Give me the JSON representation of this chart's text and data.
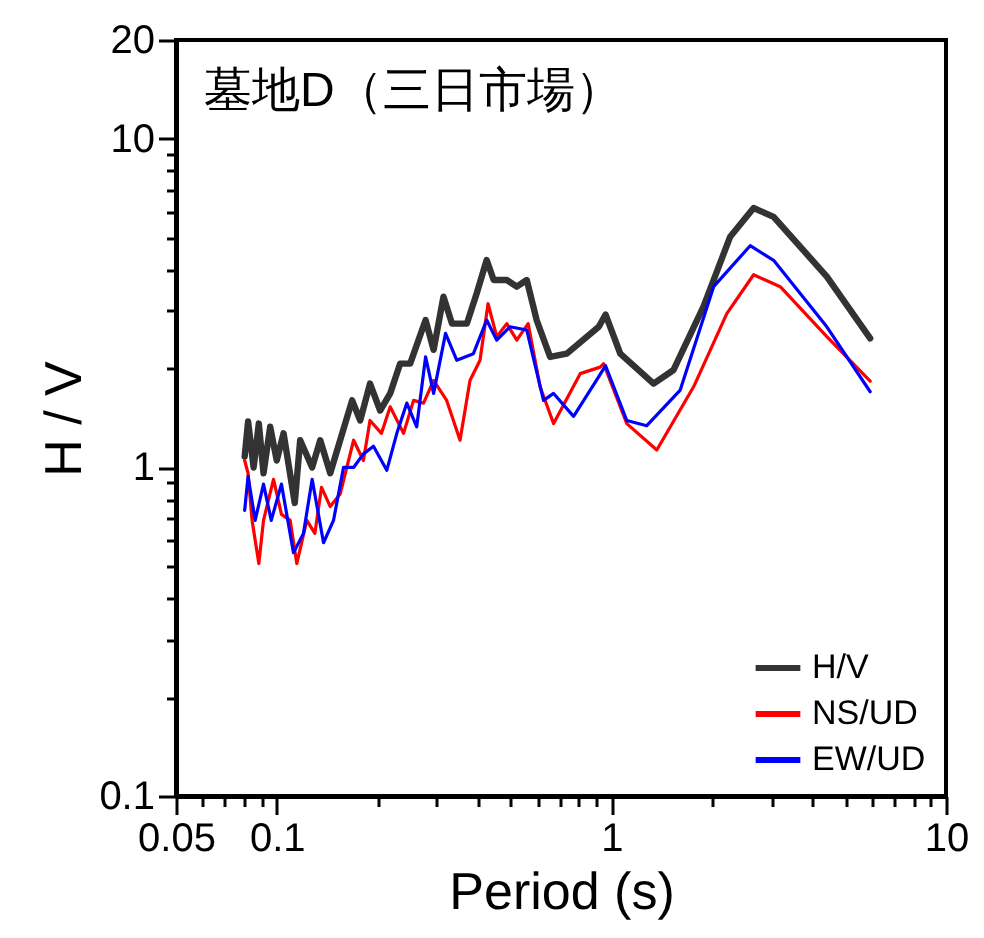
{
  "chart_data": {
    "type": "line",
    "title": "墓地D（三日市場）",
    "xlabel": "Period (s)",
    "ylabel": "H / V",
    "log": "xy",
    "grid": false,
    "legend": "bottom right",
    "line_style": "solid",
    "marker": "none",
    "xlim": [
      0.05,
      10
    ],
    "ylim": [
      0.1,
      20
    ],
    "xticks": [
      0.05,
      {
        "value": 0.06,
        "label": null
      },
      {
        "value": 0.07,
        "label": null
      },
      {
        "value": 0.08,
        "label": null
      },
      {
        "value": 0.09,
        "label": null
      },
      0.1,
      {
        "value": 0.2,
        "label": null
      },
      {
        "value": 0.3,
        "label": null
      },
      {
        "value": 0.4,
        "label": null
      },
      {
        "value": 0.5,
        "label": null
      },
      {
        "value": 0.6,
        "label": null
      },
      {
        "value": 0.7,
        "label": null
      },
      {
        "value": 0.8,
        "label": null
      },
      {
        "value": 0.9,
        "label": null
      },
      1,
      {
        "value": 2,
        "label": null
      },
      {
        "value": 3,
        "label": null
      },
      {
        "value": 4,
        "label": null
      },
      {
        "value": 5,
        "label": null
      },
      {
        "value": 6,
        "label": null
      },
      {
        "value": 7,
        "label": null
      },
      {
        "value": 8,
        "label": null
      },
      {
        "value": 9,
        "label": null
      },
      10
    ],
    "yticks": [
      0.1,
      {
        "value": 0.2,
        "label": null
      },
      {
        "value": 0.3,
        "label": null
      },
      {
        "value": 0.4,
        "label": null
      },
      {
        "value": 0.5,
        "label": null
      },
      {
        "value": 0.6,
        "label": null
      },
      {
        "value": 0.7,
        "label": null
      },
      {
        "value": 0.8,
        "label": null
      },
      {
        "value": 0.9,
        "label": null
      },
      1,
      {
        "value": 2,
        "label": null
      },
      {
        "value": 3,
        "label": null
      },
      {
        "value": 4,
        "label": null
      },
      {
        "value": 5,
        "label": null
      },
      {
        "value": 6,
        "label": null
      },
      {
        "value": 7,
        "label": null
      },
      {
        "value": 8,
        "label": null
      },
      {
        "value": 9,
        "label": null
      },
      10,
      20
    ],
    "series": [
      {
        "name": "H/V",
        "color": "#333333",
        "x": [
          0.0802,
          0.0821,
          0.0853,
          0.0884,
          0.0913,
          0.0956,
          0.1,
          0.1048,
          0.1132,
          0.1175,
          0.1276,
          0.1349,
          0.1445,
          0.1547,
          0.168,
          0.1776,
          0.19,
          0.2037,
          0.2183,
          0.2337,
          0.2505,
          0.2785,
          0.2943,
          0.315,
          0.334,
          0.37,
          0.396,
          0.424,
          0.445,
          0.487,
          0.5216,
          0.5587,
          0.598,
          0.656,
          0.736,
          0.917,
          0.961,
          1.063,
          1.337,
          1.534,
          1.886,
          2.265,
          2.661,
          3.054,
          4.404,
          5.935
        ],
        "values": [
          1.08,
          1.38,
          1.0,
          1.36,
          0.96,
          1.33,
          1.05,
          1.27,
          0.78,
          1.21,
          1.0,
          1.21,
          0.96,
          1.21,
          1.6,
          1.39,
          1.8,
          1.49,
          1.68,
          2.07,
          2.07,
          2.81,
          2.28,
          3.31,
          2.74,
          2.74,
          3.39,
          4.28,
          3.72,
          3.72,
          3.55,
          3.72,
          2.81,
          2.17,
          2.22,
          2.68,
          2.92,
          2.22,
          1.8,
          1.98,
          3.09,
          5.04,
          6.16,
          5.79,
          3.81,
          2.47
        ]
      },
      {
        "name": "NS/UD",
        "color": "#ff0000",
        "x": [
          0.0802,
          0.0821,
          0.0844,
          0.0884,
          0.0913,
          0.0978,
          0.1033,
          0.1097,
          0.1148,
          0.123,
          0.13,
          0.1361,
          0.1445,
          0.1547,
          0.1697,
          0.1816,
          0.19,
          0.2056,
          0.2183,
          0.2393,
          0.2564,
          0.2746,
          0.2943,
          0.322,
          0.353,
          0.378,
          0.405,
          0.428,
          0.4545,
          0.487,
          0.5216,
          0.564,
          0.6124,
          0.672,
          0.807,
          0.926,
          0.948,
          1.112,
          1.367,
          1.761,
          2.213,
          2.661,
          3.196,
          4.404,
          5.935
        ],
        "values": [
          1.05,
          0.96,
          0.69,
          0.51,
          0.69,
          0.92,
          0.72,
          0.69,
          0.51,
          0.69,
          0.63,
          0.87,
          0.76,
          0.83,
          1.21,
          1.05,
          1.39,
          1.27,
          1.53,
          1.27,
          1.6,
          1.57,
          1.84,
          1.6,
          1.21,
          1.84,
          2.12,
          3.15,
          2.5,
          2.74,
          2.44,
          2.74,
          1.76,
          1.36,
          1.93,
          2.02,
          2.07,
          1.36,
          1.13,
          1.76,
          2.94,
          3.86,
          3.55,
          2.5,
          1.83
        ]
      },
      {
        "name": "EW/UD",
        "color": "#0000ff",
        "x": [
          0.0802,
          0.0821,
          0.0862,
          0.0913,
          0.0963,
          0.1033,
          0.1122,
          0.1202,
          0.1276,
          0.138,
          0.1478,
          0.1583,
          0.1697,
          0.1816,
          0.1946,
          0.2132,
          0.2285,
          0.2448,
          0.262,
          0.2785,
          0.2943,
          0.3195,
          0.345,
          0.387,
          0.424,
          0.4545,
          0.498,
          0.5587,
          0.627,
          0.672,
          0.771,
          0.917,
          0.961,
          1.112,
          1.276,
          1.606,
          2.021,
          2.599,
          3.054,
          4.404,
          5.935
        ],
        "values": [
          0.74,
          0.94,
          0.69,
          0.89,
          0.69,
          0.89,
          0.55,
          0.63,
          0.92,
          0.59,
          0.69,
          1.0,
          1.0,
          1.1,
          1.16,
          0.98,
          1.27,
          1.57,
          1.33,
          2.17,
          1.68,
          2.56,
          2.12,
          2.22,
          2.81,
          2.44,
          2.68,
          2.62,
          1.6,
          1.68,
          1.43,
          1.89,
          2.04,
          1.39,
          1.34,
          1.72,
          3.55,
          4.73,
          4.27,
          2.68,
          1.7
        ]
      }
    ]
  }
}
